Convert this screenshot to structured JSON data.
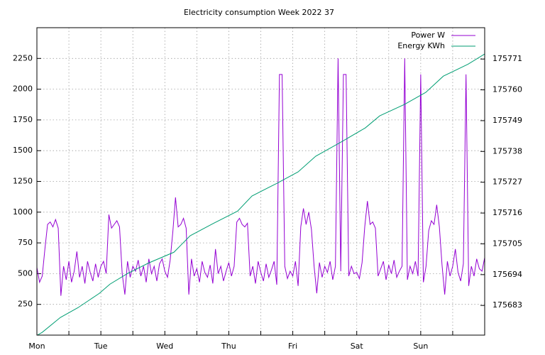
{
  "chart_data": {
    "type": "line",
    "title": "Electricity consumption Week 2022 37",
    "xlim": [
      0,
      168
    ],
    "xticks": [
      {
        "value": 0,
        "label": "Mon"
      },
      {
        "value": 24,
        "label": "Tue"
      },
      {
        "value": 48,
        "label": "Wed"
      },
      {
        "value": 72,
        "label": "Thu"
      },
      {
        "value": 96,
        "label": "Fri"
      },
      {
        "value": 120,
        "label": "Sat"
      },
      {
        "value": 144,
        "label": "Sun"
      }
    ],
    "xminorticks": [
      12,
      36,
      60,
      84,
      108,
      132,
      156
    ],
    "ylim": [
      0,
      2500
    ],
    "yticks": [
      250,
      500,
      750,
      1000,
      1250,
      1500,
      1750,
      2000,
      2250
    ],
    "y2lim": [
      175672.4,
      175782.2
    ],
    "y2ticks": [
      175683,
      175694,
      175705,
      175716,
      175727,
      175738,
      175749,
      175760,
      175771
    ],
    "grid": true,
    "legend": "top-right",
    "series": [
      {
        "name": "Power W",
        "color": "#9400d3",
        "x": [
          0,
          1,
          2,
          3,
          4,
          5,
          6,
          7,
          8,
          9,
          10,
          11,
          12,
          13,
          14,
          15,
          16,
          17,
          18,
          19,
          20,
          21,
          22,
          23,
          24,
          25,
          26,
          27,
          28,
          29,
          30,
          31,
          32,
          33,
          34,
          35,
          36,
          37,
          38,
          39,
          40,
          41,
          42,
          43,
          44,
          45,
          46,
          47,
          48,
          49,
          50,
          51,
          52,
          53,
          54,
          55,
          56,
          57,
          58,
          59,
          60,
          61,
          62,
          63,
          64,
          65,
          66,
          67,
          68,
          69,
          70,
          71,
          72,
          73,
          74,
          75,
          76,
          77,
          78,
          79,
          80,
          81,
          82,
          83,
          84,
          85,
          86,
          87,
          88,
          89,
          90,
          91,
          92,
          93,
          94,
          95,
          96,
          97,
          98,
          99,
          100,
          101,
          102,
          103,
          104,
          105,
          106,
          107,
          108,
          109,
          110,
          111,
          112,
          113,
          114,
          115,
          116,
          117,
          118,
          119,
          120,
          121,
          122,
          123,
          124,
          125,
          126,
          127,
          128,
          129,
          130,
          131,
          132,
          133,
          134,
          135,
          136,
          137,
          138,
          139,
          140,
          141,
          142,
          143,
          144,
          145,
          146,
          147,
          148,
          149,
          150,
          151,
          152,
          153,
          154,
          155,
          156,
          157,
          158,
          159,
          160,
          161,
          162,
          163,
          164,
          165,
          166,
          167,
          168
        ],
        "values": [
          550,
          430,
          480,
          700,
          900,
          920,
          880,
          940,
          870,
          320,
          560,
          450,
          600,
          430,
          520,
          680,
          470,
          560,
          420,
          600,
          510,
          440,
          580,
          470,
          560,
          600,
          500,
          980,
          870,
          900,
          930,
          880,
          500,
          330,
          600,
          470,
          560,
          520,
          610,
          480,
          560,
          430,
          620,
          500,
          560,
          440,
          580,
          620,
          520,
          470,
          610,
          840,
          1120,
          880,
          900,
          950,
          870,
          330,
          620,
          480,
          540,
          430,
          600,
          510,
          470,
          570,
          420,
          700,
          500,
          560,
          440,
          520,
          590,
          480,
          560,
          920,
          950,
          900,
          880,
          910,
          480,
          560,
          420,
          600,
          510,
          440,
          580,
          470,
          530,
          600,
          410,
          2120,
          2120,
          560,
          460,
          520,
          480,
          600,
          400,
          880,
          1030,
          900,
          1000,
          860,
          560,
          340,
          590,
          470,
          560,
          510,
          600,
          450,
          560,
          2250,
          520,
          2120,
          2120,
          480,
          560,
          500,
          510,
          460,
          590,
          880,
          1090,
          900,
          920,
          870,
          480,
          540,
          600,
          450,
          570,
          500,
          610,
          470,
          520,
          560,
          2250,
          450,
          560,
          500,
          600,
          480,
          2120,
          430,
          560,
          850,
          930,
          900,
          1060,
          880,
          570,
          330,
          600,
          480,
          560,
          700,
          510,
          440,
          580,
          2120,
          400,
          560,
          480,
          620,
          540,
          520,
          630
        ]
      },
      {
        "name": "Energy KWh",
        "color": "#009e73",
        "axis": "y2",
        "x": [
          0,
          2,
          8.8,
          15.4,
          23.4,
          27.4,
          34,
          42,
          51.4,
          57.5,
          66,
          75.3,
          80.7,
          90,
          98,
          104.6,
          114,
          123.2,
          128.6,
          137.9,
          145.9,
          152.5,
          161.8,
          168
        ],
        "values": [
          175672.3,
          175673.4,
          175678.7,
          175682.2,
          175687.3,
          175690.6,
          175694.4,
          175698.2,
          175702.0,
          175707.9,
          175712.2,
          175716.7,
          175722.1,
          175726.6,
          175730.7,
          175736.3,
          175741.3,
          175746.4,
          175750.7,
          175754.8,
          175759.1,
          175764.9,
          175769.2,
          175772.8
        ]
      }
    ]
  }
}
